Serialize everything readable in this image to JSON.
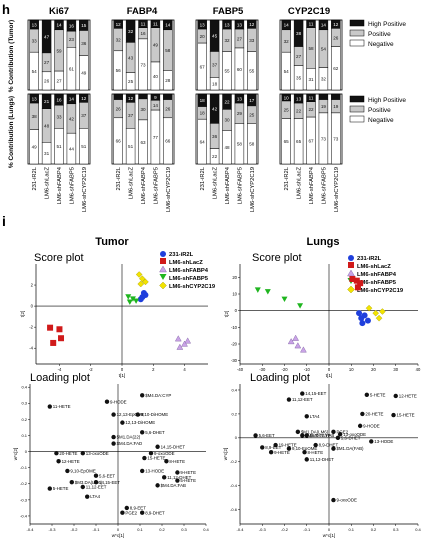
{
  "panel_h": {
    "label": "h",
    "markers": [
      "Ki67",
      "FABP4",
      "FABP5",
      "CYP2C19"
    ],
    "categories": [
      "231-iR2L",
      "LM6-shLacZ",
      "LM6-shFABP4",
      "LM6-shFABP5",
      "LM6-shCYP2C19"
    ],
    "ylabel_tumor": "% Contribution (Tumor)",
    "ylabel_lungs": "% Contribution (Lungs)",
    "legend": [
      "High Positive",
      "Positive",
      "Negative"
    ],
    "colors": {
      "high": "#111111",
      "positive": "#c9c9c9",
      "negative": "#ffffff"
    }
  },
  "panel_i": {
    "label": "i",
    "tumor_title": "Tumor",
    "lungs_title": "Lungs",
    "score_title": "Score plot",
    "loading_title": "Loading plot",
    "legend": [
      "231-iR2L",
      "LM6-shLacZ",
      "LM6-shFABP4",
      "LM6-shFABP5",
      "LM6-shCYP2C19"
    ],
    "score_xlabel": "t[1]",
    "score_ylabel": "t[2]",
    "loading_xlabel": "w*c[1]",
    "loading_ylabel": "w*c[2]"
  },
  "chart_data": [
    {
      "type": "bar",
      "stacked": true,
      "group": "Tumor",
      "marker": "Ki67",
      "categories": [
        "231-iR2L",
        "LM6-shLacZ",
        "LM6-shFABP4",
        "LM6-shFABP5",
        "LM6-shCYP2C19"
      ],
      "series": [
        {
          "name": "High Positive",
          "values": [
            13,
            47,
            14,
            16,
            15
          ]
        },
        {
          "name": "Positive",
          "values": [
            33,
            27,
            59,
            23,
            36
          ]
        },
        {
          "name": "Negative",
          "values": [
            54,
            26,
            27,
            61,
            49
          ]
        }
      ],
      "ylim": [
        0,
        100
      ]
    },
    {
      "type": "bar",
      "stacked": true,
      "group": "Tumor",
      "marker": "FABP4",
      "categories": [
        "231-iR2L",
        "LM6-shLacZ",
        "LM6-shFABP4",
        "LM6-shFABP5",
        "LM6-shCYP2C19"
      ],
      "series": [
        {
          "name": "High Positive",
          "values": [
            12,
            32,
            11,
            11,
            14
          ]
        },
        {
          "name": "Positive",
          "values": [
            32,
            43,
            16,
            49,
            58
          ]
        },
        {
          "name": "Negative",
          "values": [
            56,
            25,
            73,
            40,
            28
          ]
        }
      ],
      "ylim": [
        0,
        100
      ]
    },
    {
      "type": "bar",
      "stacked": true,
      "group": "Tumor",
      "marker": "FABP5",
      "categories": [
        "231-iR2L",
        "LM6-shLacZ",
        "LM6-shFABP4",
        "LM6-shFABP5",
        "LM6-shCYP2C19"
      ],
      "series": [
        {
          "name": "High Positive",
          "values": [
            13,
            45,
            13,
            13,
            12
          ]
        },
        {
          "name": "Positive",
          "values": [
            20,
            37,
            32,
            27,
            33
          ]
        },
        {
          "name": "Negative",
          "values": [
            67,
            18,
            55,
            60,
            55
          ]
        }
      ],
      "ylim": [
        0,
        100
      ]
    },
    {
      "type": "bar",
      "stacked": true,
      "group": "Tumor",
      "marker": "CYP2C19",
      "categories": [
        "231-iR2L",
        "LM6-shLacZ",
        "LM6-shFABP4",
        "LM6-shFABP5",
        "LM6-shCYP2C19"
      ],
      "series": [
        {
          "name": "High Positive",
          "values": [
            14,
            38,
            11,
            14,
            12
          ]
        },
        {
          "name": "Positive",
          "values": [
            32,
            27,
            58,
            54,
            26
          ]
        },
        {
          "name": "Negative",
          "values": [
            54,
            35,
            31,
            32,
            62
          ]
        }
      ],
      "ylim": [
        0,
        100
      ]
    },
    {
      "type": "bar",
      "stacked": true,
      "group": "Lungs",
      "marker": "Ki67",
      "categories": [
        "231-iR2L",
        "LM6-shLacZ",
        "LM6-shFABP4",
        "LM6-shFABP5",
        "LM6-shCYP2C19"
      ],
      "series": [
        {
          "name": "High Positive",
          "values": [
            13,
            21,
            16,
            14,
            12
          ]
        },
        {
          "name": "Positive",
          "values": [
            38,
            48,
            33,
            42,
            37
          ]
        },
        {
          "name": "Negative",
          "values": [
            49,
            31,
            51,
            44,
            51
          ]
        }
      ],
      "ylim": [
        0,
        100
      ]
    },
    {
      "type": "bar",
      "stacked": true,
      "group": "Lungs",
      "marker": "FABP4",
      "categories": [
        "231-iR2L",
        "LM6-shLacZ",
        "LM6-shFABP4",
        "LM6-shFABP5",
        "LM6-shCYP2C19"
      ],
      "series": [
        {
          "name": "High Positive",
          "values": [
            8,
            12,
            7,
            9,
            8
          ]
        },
        {
          "name": "Positive",
          "values": [
            26,
            37,
            30,
            14,
            26
          ]
        },
        {
          "name": "Negative",
          "values": [
            66,
            51,
            63,
            77,
            66
          ]
        }
      ],
      "ylim": [
        0,
        100
      ]
    },
    {
      "type": "bar",
      "stacked": true,
      "group": "Lungs",
      "marker": "FABP5",
      "categories": [
        "231-iR2L",
        "LM6-shLacZ",
        "LM6-shFABP4",
        "LM6-shFABP5",
        "LM6-shCYP2C19"
      ],
      "series": [
        {
          "name": "High Positive",
          "values": [
            18,
            42,
            22,
            13,
            17
          ]
        },
        {
          "name": "Positive",
          "values": [
            18,
            36,
            30,
            29,
            25
          ]
        },
        {
          "name": "Negative",
          "values": [
            64,
            22,
            48,
            58,
            58
          ]
        }
      ],
      "ylim": [
        0,
        100
      ]
    },
    {
      "type": "bar",
      "stacked": true,
      "group": "Lungs",
      "marker": "CYP2C19",
      "categories": [
        "231-iR2L",
        "LM6-shLacZ",
        "LM6-shFABP4",
        "LM6-shFABP5",
        "LM6-shCYP2C19"
      ],
      "series": [
        {
          "name": "High Positive",
          "values": [
            10,
            13,
            11,
            8,
            8
          ]
        },
        {
          "name": "Positive",
          "values": [
            25,
            22,
            22,
            19,
            19
          ]
        },
        {
          "name": "Negative",
          "values": [
            65,
            65,
            67,
            73,
            73
          ]
        }
      ],
      "ylim": [
        0,
        100
      ]
    },
    {
      "type": "scatter",
      "group": "Tumor",
      "plot": "score",
      "xlabel": "t[1]",
      "ylabel": "t[2]",
      "xlim": [
        -5.5,
        5.5
      ],
      "ylim": [
        -5.5,
        4
      ],
      "xticks": [
        -4,
        -2,
        0,
        2,
        4
      ],
      "yticks": [
        -4,
        -2,
        0,
        2
      ],
      "series": [
        {
          "name": "231-iR2L",
          "color": "#1f3fdc",
          "shape": "circle",
          "points": [
            [
              1.4,
              1.25
            ],
            [
              1.5,
              1.05
            ],
            [
              1.3,
              0.85
            ],
            [
              1.2,
              0.65
            ]
          ]
        },
        {
          "name": "LM6-shLacZ",
          "color": "#d01a1a",
          "shape": "square",
          "points": [
            [
              -4.6,
              -2.05
            ],
            [
              -4.0,
              -2.2
            ],
            [
              -3.9,
              -3.05
            ],
            [
              -4.4,
              -3.5
            ]
          ]
        },
        {
          "name": "LM6-shFABP4",
          "color": "#c9a3e6",
          "shape": "triangle-up",
          "points": [
            [
              3.6,
              -3.1
            ],
            [
              4.2,
              -3.3
            ],
            [
              4.0,
              -3.6
            ],
            [
              3.7,
              -3.9
            ]
          ]
        },
        {
          "name": "LM6-shFABP5",
          "color": "#1fb51f",
          "shape": "triangle-down",
          "points": [
            [
              0.4,
              0.9
            ],
            [
              0.7,
              0.7
            ],
            [
              0.9,
              0.5
            ],
            [
              0.5,
              0.4
            ]
          ]
        },
        {
          "name": "LM6-shCYP2C19",
          "color": "#f2e300",
          "shape": "diamond",
          "points": [
            [
              1.1,
              3.0
            ],
            [
              1.3,
              2.6
            ],
            [
              1.5,
              2.3
            ],
            [
              1.2,
              2.1
            ]
          ]
        }
      ]
    },
    {
      "type": "scatter",
      "group": "Lungs",
      "plot": "score",
      "xlabel": "t[1]",
      "ylabel": "t[2]",
      "xlim": [
        -40,
        40
      ],
      "ylim": [
        -32,
        28
      ],
      "xticks": [
        -40,
        -30,
        -20,
        -10,
        0,
        10,
        20,
        30,
        40
      ],
      "yticks": [
        -30,
        -20,
        -10,
        0,
        10,
        20
      ],
      "series": [
        {
          "name": "231-iR2L",
          "color": "#1f3fdc",
          "shape": "circle",
          "points": [
            [
              13.5,
              -1.5
            ],
            [
              14.5,
              -4.5
            ],
            [
              16.0,
              -2.8
            ],
            [
              17.5,
              -6.0
            ],
            [
              15.0,
              -7.5
            ]
          ]
        },
        {
          "name": "LM6-shLacZ",
          "color": "#d01a1a",
          "shape": "square",
          "points": [
            [
              10.5,
              19.0
            ],
            [
              12.5,
              18.0
            ],
            [
              14.0,
              16.5
            ],
            [
              13.0,
              14.0
            ]
          ]
        },
        {
          "name": "LM6-shFABP4",
          "color": "#c9a3e6",
          "shape": "triangle-up",
          "points": [
            [
              -15.0,
              -16.5
            ],
            [
              -17.0,
              -18.5
            ],
            [
              -14.0,
              -21.0
            ],
            [
              -11.5,
              -23.5
            ]
          ]
        },
        {
          "name": "LM6-shFABP5",
          "color": "#1fb51f",
          "shape": "triangle-down",
          "points": [
            [
              -32.0,
              12.5
            ],
            [
              -27.5,
              11.5
            ],
            [
              -20.0,
              7.0
            ],
            [
              -13.0,
              3.0
            ]
          ]
        },
        {
          "name": "LM6-shCYP2C19",
          "color": "#f2e300",
          "shape": "diamond",
          "points": [
            [
              18.0,
              1.5
            ],
            [
              21.0,
              -1.5
            ],
            [
              24.0,
              -0.5
            ],
            [
              22.5,
              -4.5
            ]
          ]
        }
      ]
    },
    {
      "type": "scatter",
      "group": "Tumor",
      "plot": "loading",
      "xlabel": "w*c[1]",
      "ylabel": "w*c[2]",
      "xlim": [
        -0.4,
        0.4
      ],
      "ylim": [
        -0.45,
        0.42
      ],
      "xticks": [
        -0.4,
        -0.3,
        -0.2,
        -0.1,
        0,
        0.1,
        0.2,
        0.3,
        0.4
      ],
      "yticks": [
        -0.4,
        -0.3,
        -0.2,
        -0.1,
        0,
        0.1,
        0.2,
        0.3,
        0.4
      ],
      "points": [
        {
          "label": "11-HETE",
          "x": -0.31,
          "y": 0.28
        },
        {
          "label": "9-HODE",
          "x": -0.05,
          "y": 0.31
        },
        {
          "label": "12,13-EpOME",
          "x": -0.02,
          "y": 0.23
        },
        {
          "label": "9,10-DiHOME",
          "x": 0.09,
          "y": 0.23
        },
        {
          "label": "$M4.DA:CYP",
          "x": 0.11,
          "y": 0.35
        },
        {
          "label": "12,13-DiHOME",
          "x": 0.02,
          "y": 0.18
        },
        {
          "label": "5,6-DHET",
          "x": 0.11,
          "y": 0.12
        },
        {
          "label": "$M1.DA(22)",
          "x": -0.02,
          "y": 0.09
        },
        {
          "label": "$M4.DA:FAD",
          "x": -0.02,
          "y": 0.05
        },
        {
          "label": "14,15-DHET",
          "x": 0.18,
          "y": 0.03
        },
        {
          "label": "9-oxoODE",
          "x": 0.15,
          "y": -0.01
        },
        {
          "label": "20-HETE",
          "x": -0.28,
          "y": -0.01
        },
        {
          "label": "13-oxoODE",
          "x": -0.16,
          "y": -0.01
        },
        {
          "label": "15-HETE",
          "x": 0.12,
          "y": -0.04
        },
        {
          "label": "8-HETE",
          "x": 0.22,
          "y": -0.06
        },
        {
          "label": "12-HETE",
          "x": -0.27,
          "y": -0.06
        },
        {
          "label": "9,10-EpOME",
          "x": -0.23,
          "y": -0.12
        },
        {
          "label": "13-HODE",
          "x": 0.11,
          "y": -0.12
        },
        {
          "label": "9-HETE",
          "x": 0.27,
          "y": -0.13
        },
        {
          "label": "5,6-EET",
          "x": -0.1,
          "y": -0.15
        },
        {
          "label": "11,12-DHET",
          "x": 0.21,
          "y": -0.16
        },
        {
          "label": "$M3.DA(LM6)",
          "x": -0.21,
          "y": -0.19
        },
        {
          "label": "14,15-EET",
          "x": -0.1,
          "y": -0.19
        },
        {
          "label": "5-HETE",
          "x": 0.27,
          "y": -0.18
        },
        {
          "label": "$M4.DA:FAB",
          "x": 0.18,
          "y": -0.21
        },
        {
          "label": "11,12-EET",
          "x": -0.16,
          "y": -0.22
        },
        {
          "label": "5-HETE",
          "x": -0.31,
          "y": -0.23
        },
        {
          "label": "LTA4",
          "x": -0.14,
          "y": -0.28
        },
        {
          "label": "8,9-EET",
          "x": 0.04,
          "y": -0.35
        },
        {
          "label": "PGE2",
          "x": 0.02,
          "y": -0.38
        },
        {
          "label": "8,9-DHET",
          "x": 0.11,
          "y": -0.38
        }
      ]
    },
    {
      "type": "scatter",
      "group": "Lungs",
      "plot": "loading",
      "xlabel": "w*c[1]",
      "ylabel": "w*c[2]",
      "xlim": [
        -0.4,
        0.4
      ],
      "ylim": [
        -0.72,
        0.45
      ],
      "xticks": [
        -0.4,
        -0.3,
        -0.2,
        -0.1,
        0,
        0.1,
        0.2,
        0.3,
        0.4
      ],
      "yticks": [
        -0.6,
        -0.4,
        -0.2,
        0,
        0.2,
        0.4
      ],
      "points": [
        {
          "label": "14,15-EET",
          "x": -0.12,
          "y": 0.37
        },
        {
          "label": "11,12-EET",
          "x": -0.18,
          "y": 0.32
        },
        {
          "label": "5-HETE",
          "x": 0.17,
          "y": 0.36
        },
        {
          "label": "12-HETE",
          "x": 0.3,
          "y": 0.35
        },
        {
          "label": "LTA4",
          "x": -0.1,
          "y": 0.18
        },
        {
          "label": "20-HETE",
          "x": 0.15,
          "y": 0.2
        },
        {
          "label": "15-HETE",
          "x": 0.29,
          "y": 0.19
        },
        {
          "label": "9-HODE",
          "x": 0.14,
          "y": 0.1
        },
        {
          "label": "$M1.DA(LM6)",
          "x": -0.14,
          "y": 0.05
        },
        {
          "label": "PGE2",
          "x": 0.02,
          "y": 0.05
        },
        {
          "label": "13-oxoODE",
          "x": 0.05,
          "y": 0.03
        },
        {
          "label": "5,6-EET",
          "x": -0.33,
          "y": 0.02
        },
        {
          "label": "$M4.TA:CYP",
          "x": -0.12,
          "y": 0.02
        },
        {
          "label": "$M4.TA:FAB",
          "x": -0.1,
          "y": 0.02
        },
        {
          "label": "5,6-DHET",
          "x": 0.04,
          "y": 0.0
        },
        {
          "label": "13-HODE",
          "x": 0.19,
          "y": -0.03
        },
        {
          "label": "19-HETE",
          "x": -0.24,
          "y": -0.06
        },
        {
          "label": "9,10-EpOME",
          "x": -0.18,
          "y": -0.09
        },
        {
          "label": "8,9-EET",
          "x": -0.3,
          "y": -0.08
        },
        {
          "label": "8,9-DHET",
          "x": -0.06,
          "y": -0.06
        },
        {
          "label": "9-HETE",
          "x": -0.26,
          "y": -0.12
        },
        {
          "label": "$M1.DA(FAB)",
          "x": 0.02,
          "y": -0.09
        },
        {
          "label": "8-HETE",
          "x": -0.11,
          "y": -0.12
        },
        {
          "label": "11,12-DHET",
          "x": -0.1,
          "y": -0.18
        },
        {
          "label": "9-oxoODE",
          "x": 0.02,
          "y": -0.52
        }
      ]
    }
  ]
}
